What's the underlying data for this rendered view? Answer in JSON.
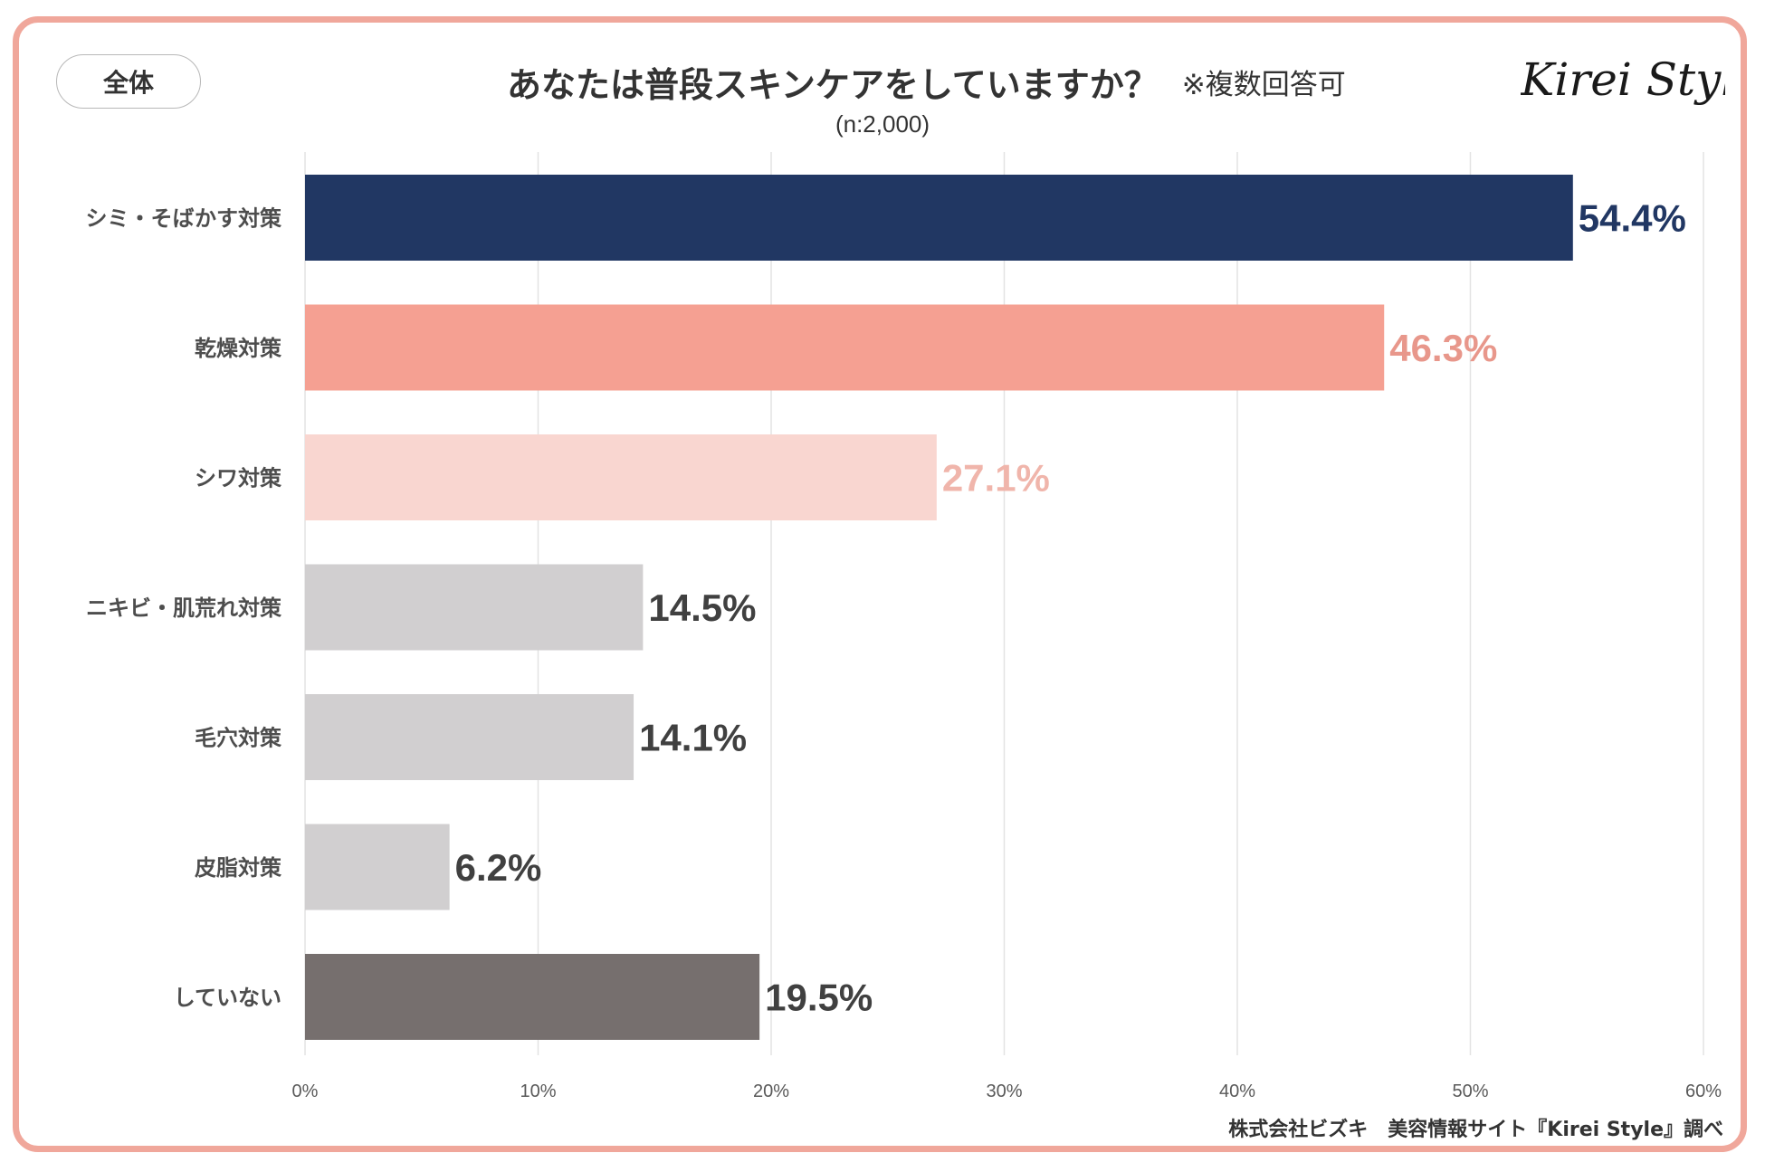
{
  "segment_label": "全体",
  "logo_text": "Kirei Style",
  "credit": "株式会社ビズキ　美容情報サイト『Kirei Style』調べ",
  "chart_data": {
    "type": "bar",
    "orientation": "horizontal",
    "title": "あなたは普段スキンケアをしていますか？",
    "title_note": "※複数回答可",
    "subtitle": "(n:2,000)",
    "categories": [
      "シミ・そばかす対策",
      "乾燥対策",
      "シワ対策",
      "ニキビ・肌荒れ対策",
      "毛穴対策",
      "皮脂対策",
      "していない"
    ],
    "values": [
      54.4,
      46.3,
      27.1,
      14.5,
      14.1,
      6.2,
      19.5
    ],
    "value_labels": [
      "54.4%",
      "46.3%",
      "27.1%",
      "14.5%",
      "14.1%",
      "6.2%",
      "19.5%"
    ],
    "bar_colors": [
      "#213763",
      "#f5a092",
      "#f9d6d0",
      "#d1cfd0",
      "#d1cfd0",
      "#d1cfd0",
      "#766f6e"
    ],
    "label_colors": [
      "#213763",
      "#e8978b",
      "#f0b5ab",
      "#404040",
      "#404040",
      "#404040",
      "#404040"
    ],
    "xlim": [
      0,
      60
    ],
    "xticks": [
      0,
      10,
      20,
      30,
      40,
      50,
      60
    ],
    "xtick_labels": [
      "0%",
      "10%",
      "20%",
      "30%",
      "40%",
      "50%",
      "60%"
    ],
    "grid": true,
    "legend": "none"
  }
}
